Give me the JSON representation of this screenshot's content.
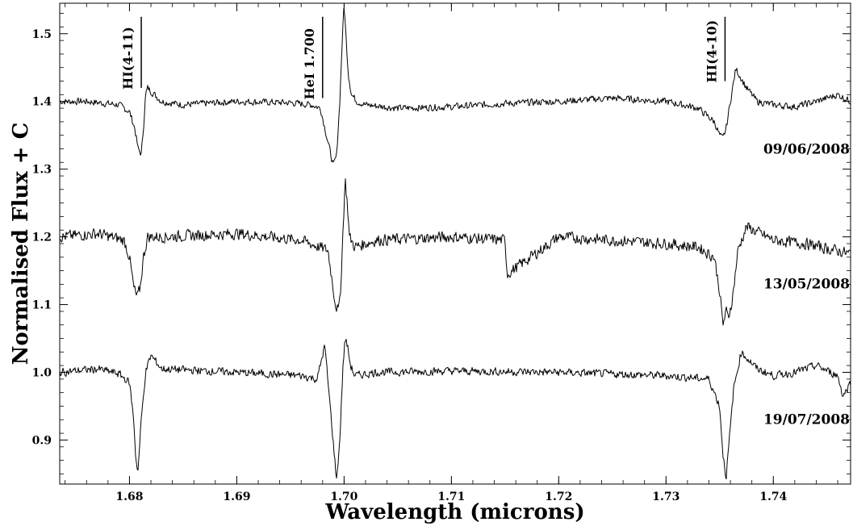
{
  "chart_data": {
    "type": "line",
    "xlabel": "Wavelength (microns)",
    "ylabel": "Normalised Flux + C",
    "xlim": [
      1.6735,
      1.7472
    ],
    "ylim": [
      0.835,
      1.545
    ],
    "x_ticks": [
      1.68,
      1.69,
      1.7,
      1.71,
      1.72,
      1.73,
      1.74
    ],
    "x_tick_labels": [
      "1.68",
      "1.69",
      "1.70",
      "1.71",
      "1.72",
      "1.73",
      "1.74"
    ],
    "y_ticks": [
      0.9,
      1.0,
      1.1,
      1.2,
      1.3,
      1.4,
      1.5
    ],
    "y_tick_labels": [
      "0.9",
      "1.0",
      "1.1",
      "1.2",
      "1.3",
      "1.4",
      "1.5"
    ],
    "grid": false,
    "line_markers": [
      {
        "label": "HI(4-11)",
        "x": 1.6811,
        "y_top": 1.525,
        "y_bottom": 1.42
      },
      {
        "label": "HeI 1.700",
        "x": 1.698,
        "y_top": 1.525,
        "y_bottom": 1.405
      },
      {
        "label": "HI(4-10)",
        "x": 1.7355,
        "y_top": 1.525,
        "y_bottom": 1.43
      }
    ],
    "series": [
      {
        "name": "09/06/2008",
        "noise": 0.006,
        "x": [
          1.6735,
          1.676,
          1.679,
          1.68,
          1.6805,
          1.6808,
          1.6811,
          1.6813,
          1.6815,
          1.6817,
          1.682,
          1.683,
          1.685,
          1.69,
          1.695,
          1.697,
          1.6978,
          1.6985,
          1.699,
          1.6993,
          1.6996,
          1.6998,
          1.7,
          1.7002,
          1.7004,
          1.7007,
          1.7012,
          1.702,
          1.705,
          1.71,
          1.715,
          1.72,
          1.725,
          1.73,
          1.733,
          1.7345,
          1.735,
          1.7353,
          1.7356,
          1.736,
          1.7365,
          1.7368,
          1.7375,
          1.7385,
          1.74,
          1.742,
          1.744,
          1.746,
          1.7472
        ],
        "y": [
          1.4,
          1.4,
          1.395,
          1.385,
          1.36,
          1.33,
          1.322,
          1.36,
          1.41,
          1.42,
          1.415,
          1.4,
          1.395,
          1.4,
          1.398,
          1.395,
          1.39,
          1.34,
          1.305,
          1.32,
          1.4,
          1.48,
          1.545,
          1.49,
          1.44,
          1.41,
          1.4,
          1.395,
          1.39,
          1.392,
          1.397,
          1.4,
          1.405,
          1.4,
          1.39,
          1.37,
          1.35,
          1.345,
          1.36,
          1.4,
          1.448,
          1.44,
          1.42,
          1.4,
          1.395,
          1.392,
          1.4,
          1.41,
          1.4
        ]
      },
      {
        "name": "13/05/2008",
        "noise": 0.01,
        "x": [
          1.6735,
          1.677,
          1.6795,
          1.68,
          1.6804,
          1.6807,
          1.681,
          1.6813,
          1.6817,
          1.683,
          1.69,
          1.696,
          1.6985,
          1.6992,
          1.6995,
          1.6997,
          1.6999,
          1.7001,
          1.7003,
          1.7005,
          1.701,
          1.703,
          1.71,
          1.715,
          1.7152,
          1.72,
          1.725,
          1.73,
          1.733,
          1.7345,
          1.735,
          1.7353,
          1.7356,
          1.7358,
          1.7362,
          1.7367,
          1.7375,
          1.74,
          1.743,
          1.7472
        ],
        "y": [
          1.2,
          1.205,
          1.195,
          1.17,
          1.125,
          1.11,
          1.125,
          1.17,
          1.2,
          1.2,
          1.205,
          1.195,
          1.18,
          1.1,
          1.09,
          1.13,
          1.21,
          1.285,
          1.25,
          1.2,
          1.185,
          1.195,
          1.2,
          1.195,
          1.145,
          1.2,
          1.195,
          1.19,
          1.185,
          1.17,
          1.12,
          1.07,
          1.09,
          1.08,
          1.11,
          1.18,
          1.215,
          1.195,
          1.19,
          1.175
        ]
      },
      {
        "name": "19/07/2008",
        "noise": 0.007,
        "x": [
          1.6735,
          1.677,
          1.679,
          1.68,
          1.6804,
          1.6806,
          1.6808,
          1.6811,
          1.6815,
          1.682,
          1.683,
          1.69,
          1.696,
          1.6975,
          1.6982,
          1.6987,
          1.6993,
          1.6996,
          1.6999,
          1.7001,
          1.7003,
          1.7006,
          1.701,
          1.703,
          1.71,
          1.72,
          1.73,
          1.734,
          1.735,
          1.7353,
          1.7356,
          1.7359,
          1.7363,
          1.737,
          1.7385,
          1.74,
          1.742,
          1.744,
          1.746,
          1.7465,
          1.7472
        ],
        "y": [
          1.0,
          1.005,
          0.998,
          0.985,
          0.93,
          0.87,
          0.855,
          0.93,
          1.0,
          1.025,
          1.005,
          1.0,
          0.995,
          0.99,
          1.04,
          0.95,
          0.84,
          0.9,
          1.01,
          1.05,
          1.04,
          1.01,
          0.995,
          1.0,
          1.002,
          1.0,
          0.995,
          0.99,
          0.95,
          0.88,
          0.845,
          0.9,
          0.975,
          1.03,
          1.005,
          0.995,
          1.0,
          1.01,
          0.995,
          0.965,
          0.985
        ]
      }
    ]
  }
}
